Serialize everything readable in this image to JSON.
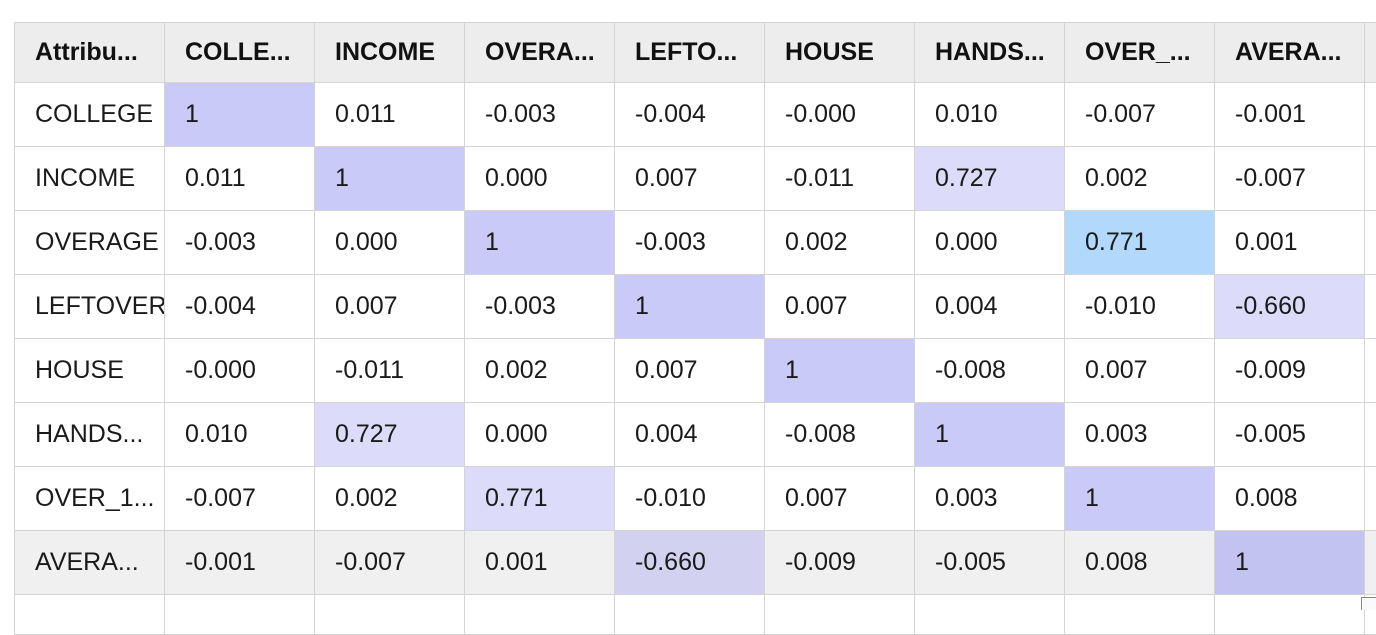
{
  "table": {
    "columns": [
      "Attribu...",
      "COLLE...",
      "INCOME",
      "OVERA...",
      "LEFTO...",
      "HOUSE",
      "HANDS...",
      "OVER_...",
      "AVERA..."
    ],
    "rows": [
      {
        "label": "COLLEGE",
        "cells": [
          "1",
          "0.011",
          "-0.003",
          "-0.004",
          "-0.000",
          "0.010",
          "-0.007",
          "-0.001"
        ],
        "hl": [
          "diag",
          "",
          "",
          "",
          "",
          "",
          "",
          ""
        ]
      },
      {
        "label": "INCOME",
        "cells": [
          "0.011",
          "1",
          "0.000",
          "0.007",
          "-0.011",
          "0.727",
          "0.002",
          "-0.007"
        ],
        "hl": [
          "",
          "diag",
          "",
          "",
          "",
          "hi-purple",
          "",
          ""
        ]
      },
      {
        "label": "OVERAGE",
        "cells": [
          "-0.003",
          "0.000",
          "1",
          "-0.003",
          "0.002",
          "0.000",
          "0.771",
          "0.001"
        ],
        "hl": [
          "",
          "",
          "diag",
          "",
          "",
          "",
          "hi-blue",
          ""
        ]
      },
      {
        "label": "LEFTOVER",
        "cells": [
          "-0.004",
          "0.007",
          "-0.003",
          "1",
          "0.007",
          "0.004",
          "-0.010",
          "-0.660"
        ],
        "hl": [
          "",
          "",
          "",
          "diag",
          "",
          "",
          "",
          "hi-purple"
        ]
      },
      {
        "label": "HOUSE",
        "cells": [
          "-0.000",
          "-0.011",
          "0.002",
          "0.007",
          "1",
          "-0.008",
          "0.007",
          "-0.009"
        ],
        "hl": [
          "",
          "",
          "",
          "",
          "diag",
          "",
          "",
          ""
        ]
      },
      {
        "label": "HANDS...",
        "cells": [
          "0.010",
          "0.727",
          "0.000",
          "0.004",
          "-0.008",
          "1",
          "0.003",
          "-0.005"
        ],
        "hl": [
          "",
          "hi-purple",
          "",
          "",
          "",
          "diag",
          "",
          ""
        ]
      },
      {
        "label": "OVER_1...",
        "cells": [
          "-0.007",
          "0.002",
          "0.771",
          "-0.010",
          "0.007",
          "0.003",
          "1",
          "0.008"
        ],
        "hl": [
          "",
          "",
          "hi-purple",
          "",
          "",
          "",
          "diag",
          ""
        ]
      },
      {
        "label": "AVERA...",
        "cells": [
          "-0.001",
          "-0.007",
          "0.001",
          "-0.660",
          "-0.009",
          "-0.005",
          "0.008",
          "1"
        ],
        "hl": [
          "",
          "",
          "",
          "hi-purple",
          "",
          "",
          "",
          "diag"
        ]
      }
    ]
  },
  "colors": {
    "diagonal": "#cacaf8",
    "strong_positive": "#b2d8fc",
    "strong_correlation": "#dcdcfa",
    "header_bg": "#ededed",
    "selected_row_bg": "#f0f0f0"
  }
}
